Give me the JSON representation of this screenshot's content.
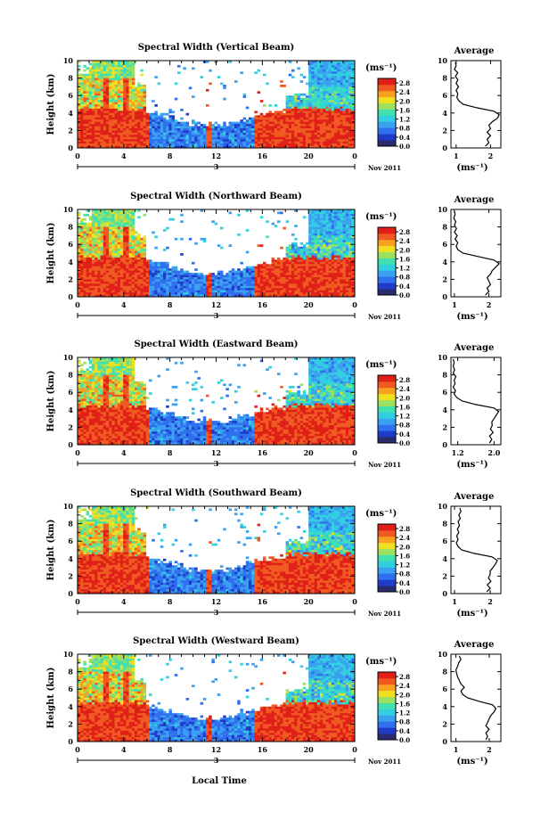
{
  "figure": {
    "xlabel": "Local Time",
    "ylabel": "Height (km)",
    "date_label": "3",
    "month_label": "Nov 2011",
    "colorbar_unit": "(ms⁻¹)",
    "avg_title": "Average",
    "avg_xlabel": "(ms⁻¹)",
    "colors": {
      "colormap": [
        "#2a2a6e",
        "#1e3cc8",
        "#2f6ff0",
        "#3aa0f0",
        "#30d0e0",
        "#40e0b0",
        "#9be060",
        "#f0e020",
        "#f8a020",
        "#f05a20",
        "#e02018"
      ]
    }
  },
  "chart_data": [
    {
      "type": "heatmap",
      "title": "Spectral Width (Vertical Beam)",
      "x_ticks": [
        "0",
        "4",
        "8",
        "12",
        "16",
        "20",
        "0"
      ],
      "y_ticks": [
        "0",
        "2",
        "4",
        "6",
        "8",
        "10"
      ],
      "xlim": [
        0,
        24
      ],
      "ylim": [
        0,
        10
      ],
      "colorbar": {
        "ticks": [
          "0.0",
          "0.4",
          "0.8",
          "1.2",
          "1.6",
          "2.0",
          "2.4",
          "2.8"
        ],
        "range": [
          0,
          3.0
        ]
      },
      "average": {
        "title": "Average",
        "x_ticks": [
          "1",
          "2"
        ],
        "xlim": [
          0.85,
          2.3
        ],
        "y_ticks": [
          "0",
          "2",
          "4",
          "6",
          "8",
          "10"
        ],
        "height": [
          0.2,
          0.6,
          1.0,
          1.4,
          1.8,
          2.2,
          2.6,
          3.0,
          3.4,
          3.8,
          4.2,
          4.6,
          5.0,
          5.4,
          5.8,
          6.2,
          6.6,
          7.0,
          7.4,
          7.8,
          8.2,
          8.6,
          9.0,
          9.4,
          9.8
        ],
        "values": [
          1.85,
          1.95,
          1.9,
          2.0,
          1.9,
          2.0,
          1.95,
          2.05,
          2.2,
          2.25,
          2.1,
          1.6,
          1.2,
          1.08,
          1.02,
          1.05,
          1.0,
          1.07,
          1.0,
          1.05,
          0.98,
          1.05,
          0.95,
          1.0,
          0.98
        ]
      }
    },
    {
      "type": "heatmap",
      "title": "Spectral Width (Northward Beam)",
      "x_ticks": [
        "0",
        "4",
        "8",
        "12",
        "16",
        "20",
        "0"
      ],
      "y_ticks": [
        "0",
        "2",
        "4",
        "6",
        "8",
        "10"
      ],
      "xlim": [
        0,
        24
      ],
      "ylim": [
        0,
        10
      ],
      "colorbar": {
        "ticks": [
          "0.0",
          "0.4",
          "0.8",
          "1.2",
          "1.6",
          "2.0",
          "2.4",
          "2.8"
        ],
        "range": [
          0,
          3.0
        ]
      },
      "average": {
        "title": "Average",
        "x_ticks": [
          "1",
          "2"
        ],
        "xlim": [
          0.9,
          2.35
        ],
        "y_ticks": [
          "0",
          "2",
          "4",
          "6",
          "8",
          "10"
        ],
        "height": [
          0.2,
          0.6,
          1.0,
          1.4,
          1.8,
          2.2,
          2.6,
          3.0,
          3.4,
          3.8,
          4.2,
          4.6,
          5.0,
          5.4,
          5.8,
          6.2,
          6.6,
          7.0,
          7.4,
          7.8,
          8.2,
          8.6,
          9.0,
          9.4,
          9.8
        ],
        "values": [
          1.9,
          2.0,
          1.95,
          2.05,
          2.0,
          1.95,
          2.05,
          2.1,
          2.2,
          2.3,
          2.15,
          1.7,
          1.25,
          1.1,
          1.05,
          1.1,
          1.02,
          1.08,
          1.0,
          1.06,
          1.0,
          1.04,
          0.98,
          1.02,
          1.0
        ]
      }
    },
    {
      "type": "heatmap",
      "title": "Spectral Width (Eastward Beam)",
      "x_ticks": [
        "0",
        "4",
        "8",
        "12",
        "16",
        "20",
        "0"
      ],
      "y_ticks": [
        "0",
        "2",
        "4",
        "6",
        "8",
        "10"
      ],
      "xlim": [
        0,
        24
      ],
      "ylim": [
        0,
        10
      ],
      "colorbar": {
        "ticks": [
          "0.0",
          "0.4",
          "0.8",
          "1.2",
          "1.6",
          "2.0",
          "2.4",
          "2.8"
        ],
        "range": [
          0,
          3.0
        ]
      },
      "average": {
        "title": "Average",
        "x_ticks": [
          "1.2",
          "2.0"
        ],
        "xlim": [
          1.05,
          2.15
        ],
        "y_ticks": [
          "0",
          "2",
          "4",
          "6",
          "8",
          "10"
        ],
        "height": [
          0.2,
          0.6,
          1.0,
          1.4,
          1.8,
          2.2,
          2.6,
          3.0,
          3.4,
          3.8,
          4.2,
          4.6,
          5.0,
          5.4,
          5.8,
          6.2,
          6.6,
          7.0,
          7.4,
          7.8,
          8.2,
          8.6,
          9.0,
          9.4,
          9.8
        ],
        "values": [
          1.9,
          1.95,
          1.9,
          1.98,
          1.92,
          1.96,
          1.95,
          2.0,
          2.05,
          2.1,
          2.0,
          1.6,
          1.3,
          1.18,
          1.12,
          1.15,
          1.1,
          1.14,
          1.12,
          1.16,
          1.1,
          1.13,
          1.1,
          1.12,
          1.1
        ]
      }
    },
    {
      "type": "heatmap",
      "title": "Spectral Width (Southward Beam)",
      "x_ticks": [
        "0",
        "4",
        "8",
        "12",
        "16",
        "20",
        "0"
      ],
      "y_ticks": [
        "0",
        "2",
        "4",
        "6",
        "8",
        "10"
      ],
      "xlim": [
        0,
        24
      ],
      "ylim": [
        0,
        10
      ],
      "colorbar": {
        "ticks": [
          "0.0",
          "0.4",
          "0.8",
          "1.2",
          "1.6",
          "2.0",
          "2.4",
          "2.8"
        ],
        "range": [
          0,
          3.0
        ]
      },
      "average": {
        "title": "Average",
        "x_ticks": [
          "1",
          "2"
        ],
        "xlim": [
          0.9,
          2.3
        ],
        "y_ticks": [
          "0",
          "2",
          "4",
          "6",
          "8",
          "10"
        ],
        "height": [
          0.2,
          0.6,
          1.0,
          1.4,
          1.8,
          2.2,
          2.6,
          3.0,
          3.4,
          3.8,
          4.2,
          4.6,
          5.0,
          5.4,
          5.8,
          6.2,
          6.6,
          7.0,
          7.4,
          7.8,
          8.2,
          8.6,
          9.0,
          9.4,
          9.8
        ],
        "values": [
          1.9,
          2.0,
          1.92,
          2.02,
          1.95,
          2.0,
          2.0,
          2.08,
          2.15,
          2.2,
          2.05,
          1.55,
          1.2,
          1.1,
          1.05,
          1.1,
          1.06,
          1.12,
          1.08,
          1.14,
          1.1,
          1.16,
          1.12,
          1.18,
          1.15
        ]
      }
    },
    {
      "type": "heatmap",
      "title": "Spectral Width (Westward Beam)",
      "x_ticks": [
        "0",
        "4",
        "8",
        "12",
        "16",
        "20",
        "0"
      ],
      "y_ticks": [
        "0",
        "2",
        "4",
        "6",
        "8",
        "10"
      ],
      "xlim": [
        0,
        24
      ],
      "ylim": [
        0,
        10
      ],
      "colorbar": {
        "ticks": [
          "0.0",
          "0.4",
          "0.8",
          "1.2",
          "1.6",
          "2.0",
          "2.4",
          "2.8"
        ],
        "range": [
          0,
          3.0
        ]
      },
      "average": {
        "title": "Average",
        "x_ticks": [
          "1",
          "2"
        ],
        "xlim": [
          0.85,
          2.35
        ],
        "y_ticks": [
          "0",
          "2",
          "4",
          "6",
          "8",
          "10"
        ],
        "height": [
          0.2,
          0.6,
          1.0,
          1.4,
          1.8,
          2.2,
          2.6,
          3.0,
          3.4,
          3.8,
          4.2,
          4.6,
          5.0,
          5.4,
          5.8,
          6.2,
          6.6,
          7.0,
          7.4,
          7.8,
          8.2,
          8.6,
          9.0,
          9.4,
          9.8
        ],
        "values": [
          1.9,
          1.95,
          1.9,
          2.0,
          1.9,
          1.95,
          2.0,
          2.05,
          2.15,
          2.2,
          2.1,
          1.7,
          1.35,
          1.2,
          1.15,
          1.25,
          1.15,
          1.1,
          1.05,
          1.02,
          1.0,
          1.05,
          1.08,
          1.15,
          1.1
        ]
      }
    }
  ]
}
